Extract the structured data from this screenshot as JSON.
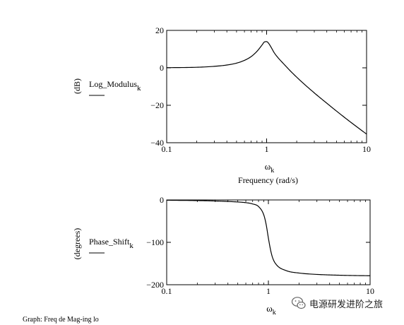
{
  "chart_data": [
    {
      "type": "line",
      "xscale": "log",
      "xlim": [
        0.1,
        10
      ],
      "ylim": [
        -40,
        20
      ],
      "x_ticks": [
        0.1,
        1,
        10
      ],
      "y_ticks": [
        20,
        0,
        -20,
        -40
      ],
      "x_tick_labels": [
        "0.1",
        "1",
        "10"
      ],
      "y_tick_labels": [
        "20",
        "0",
        "−20",
        "−40"
      ],
      "ylabel_unit": "(dB)",
      "ylabel": "Log_Modulus",
      "ylabel_sub": "k",
      "xlabel": "ω",
      "xlabel_sub": "k",
      "xlabel_caption": "Frequency (rad/s)",
      "grid": false,
      "series": [
        {
          "x": [
            0.1,
            0.2,
            0.3,
            0.4,
            0.5,
            0.6,
            0.7,
            0.8,
            0.9,
            0.95,
            1.0,
            1.05,
            1.1,
            1.2,
            1.5,
            2,
            3,
            4,
            5,
            7,
            10
          ],
          "y": [
            0.1,
            0.3,
            0.8,
            1.5,
            2.5,
            4.0,
            6.0,
            8.8,
            12.2,
            13.8,
            14.0,
            13.0,
            11.3,
            7.8,
            1.8,
            -5.0,
            -13.4,
            -18.9,
            -23.1,
            -29.2,
            -35.4
          ]
        }
      ]
    },
    {
      "type": "line",
      "xscale": "log",
      "xlim": [
        0.1,
        10
      ],
      "ylim": [
        -200,
        0
      ],
      "x_ticks": [
        0.1,
        1,
        10
      ],
      "y_ticks": [
        0,
        -100,
        -200
      ],
      "x_tick_labels": [
        "0.1",
        "1",
        "10"
      ],
      "y_tick_labels": [
        "0",
        "−100",
        "−200"
      ],
      "ylabel_unit": "(degrees)",
      "ylabel": "Phase_Shift",
      "ylabel_sub": "k",
      "xlabel": "ω",
      "xlabel_sub": "k",
      "grid": false,
      "series": [
        {
          "x": [
            0.1,
            0.2,
            0.3,
            0.4,
            0.5,
            0.6,
            0.7,
            0.8,
            0.9,
            0.95,
            1.0,
            1.05,
            1.1,
            1.2,
            1.5,
            2,
            3,
            4,
            5,
            7,
            10
          ],
          "y": [
            -0.7,
            -1.5,
            -2.5,
            -3.6,
            -4.8,
            -6.4,
            -9.4,
            -15.6,
            -35.0,
            -57.5,
            -90.0,
            -117.7,
            -136.4,
            -152.9,
            -166.8,
            -172.4,
            -175.7,
            -176.9,
            -177.6,
            -178.3,
            -178.8
          ]
        }
      ]
    }
  ],
  "watermark": {
    "text": "电源研发进阶之旅",
    "icon": "wechat-icon"
  },
  "caption": {
    "text": "Graph: Freq de Mag-ing lo"
  }
}
